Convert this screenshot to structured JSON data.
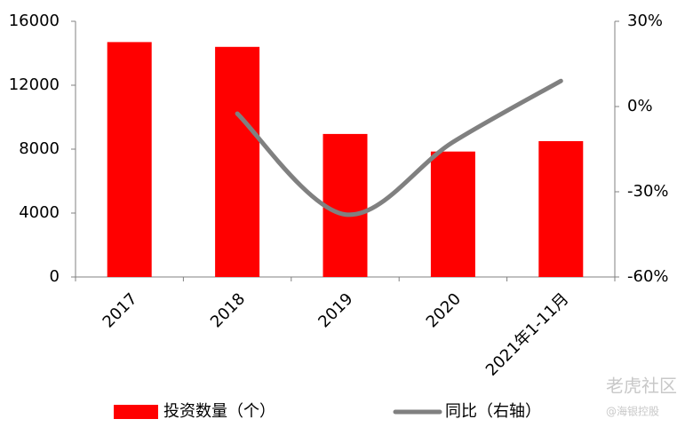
{
  "chart_data": {
    "type": "bar",
    "categories": [
      "2017",
      "2018",
      "2019",
      "2020",
      "2021年1-11月"
    ],
    "series": [
      {
        "name": "投资数量（个）",
        "type": "bar",
        "color": "#ff0000",
        "values": [
          14700,
          14400,
          8950,
          7850,
          8500
        ]
      },
      {
        "name": "同比（右轴）",
        "type": "line",
        "axis": "y2",
        "color": "#808080",
        "values": [
          null,
          -2.5,
          -38,
          -12.5,
          9
        ]
      }
    ],
    "ylim": [
      0,
      16000
    ],
    "yticks": [
      0,
      4000,
      8000,
      12000,
      16000
    ],
    "y2lim": [
      -60,
      30
    ],
    "y2ticks": [
      {
        "value": -60,
        "label": "-60%"
      },
      {
        "value": -30,
        "label": "-30%"
      },
      {
        "value": 0,
        "label": "0%"
      },
      {
        "value": 30,
        "label": "30%"
      }
    ],
    "grid": false,
    "legend": "bottom"
  },
  "watermark": [
    "老虎社区",
    "@海银控股"
  ]
}
